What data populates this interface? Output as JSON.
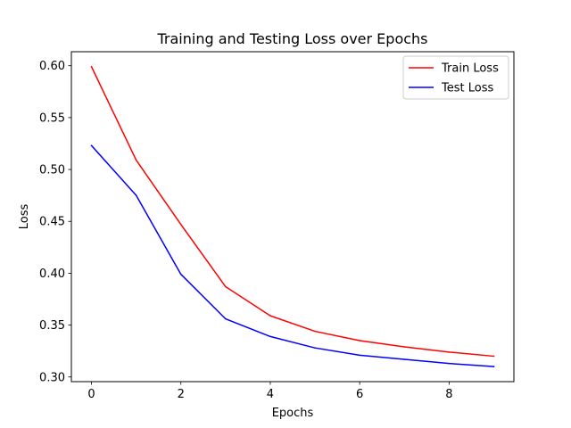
{
  "chart_data": {
    "type": "line",
    "title": "Training and Testing Loss over Epochs",
    "xlabel": "Epochs",
    "ylabel": "Loss",
    "x": [
      0,
      1,
      2,
      3,
      4,
      5,
      6,
      7,
      8,
      9
    ],
    "xlim": [
      -0.45,
      9.45
    ],
    "ylim": [
      0.2955,
      0.6135
    ],
    "xticks": [
      0,
      2,
      4,
      6,
      8
    ],
    "yticks": [
      0.3,
      0.35,
      0.4,
      0.45,
      0.5,
      0.55,
      0.6
    ],
    "ytick_labels": [
      "0.30",
      "0.35",
      "0.40",
      "0.45",
      "0.50",
      "0.55",
      "0.60"
    ],
    "grid": false,
    "legend_position": "top-right",
    "series": [
      {
        "name": "Train Loss",
        "color": "#ff0000",
        "values": [
          0.599,
          0.509,
          0.447,
          0.387,
          0.359,
          0.344,
          0.335,
          0.329,
          0.324,
          0.32
        ]
      },
      {
        "name": "Test Loss",
        "color": "#0000ff",
        "values": [
          0.523,
          0.475,
          0.399,
          0.356,
          0.339,
          0.328,
          0.321,
          0.317,
          0.313,
          0.31
        ]
      }
    ]
  }
}
